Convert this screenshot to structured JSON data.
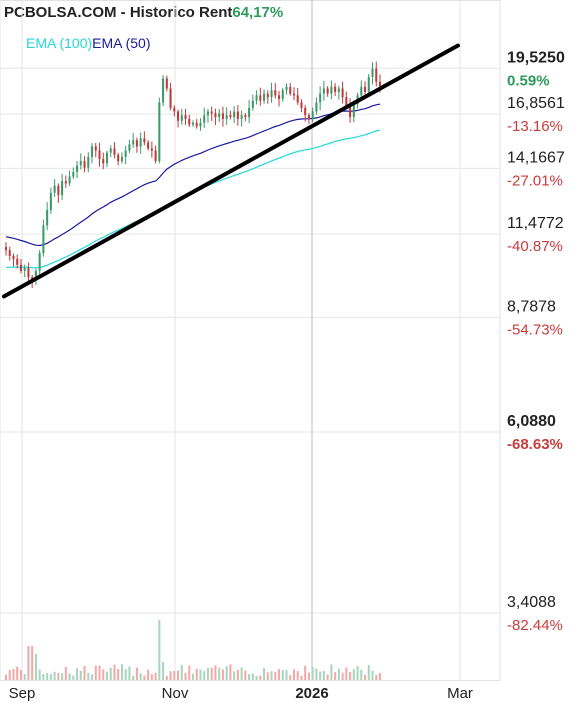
{
  "header": {
    "title": "PCBOLSA.COM - Historico",
    "rent_label": "Rent",
    "rent_value": "64,17%"
  },
  "legend": [
    {
      "name": "EMA (100)",
      "color": "#22d8d8"
    },
    {
      "name": "EMA (50)",
      "color": "#1a1a9c"
    }
  ],
  "chart_data": {
    "type": "candlestick",
    "y_axis": {
      "scale": "log",
      "range": [
        2.75,
        22.5
      ],
      "ticks": [
        {
          "value": 19.525,
          "label": "19,5250",
          "pct": "0.59%",
          "pct_color": "#2e9a5c",
          "bold": true
        },
        {
          "value": 16.8561,
          "label": "16,8561",
          "pct": "-13.16%",
          "pct_color": "#c83c3c",
          "bold": false
        },
        {
          "value": 14.1667,
          "label": "14,1667",
          "pct": "-27.01%",
          "pct_color": "#c83c3c",
          "bold": false
        },
        {
          "value": 11.4772,
          "label": "11,4772",
          "pct": "-40.87%",
          "pct_color": "#c83c3c",
          "bold": false
        },
        {
          "value": 8.7878,
          "label": "8,7878",
          "pct": "-54.73%",
          "pct_color": "#c83c3c",
          "bold": false
        },
        {
          "value": 6.088,
          "label": "6,0880",
          "pct": "-68.63%",
          "pct_color": "#c83c3c",
          "bold": true
        },
        {
          "value": 3.4088,
          "label": "3,4088",
          "pct": "-82.44%",
          "pct_color": "#c83c3c",
          "bold": false
        }
      ]
    },
    "x_axis": {
      "ticks": [
        {
          "label": "Sep",
          "bold": false
        },
        {
          "label": "Nov",
          "bold": false
        },
        {
          "label": "2026",
          "bold": true
        },
        {
          "label": "Mar",
          "bold": false
        }
      ]
    },
    "closes": [
      10.9,
      10.7,
      10.6,
      10.4,
      10.2,
      10.3,
      10.0,
      9.9,
      10.2,
      10.8,
      11.8,
      12.4,
      13.1,
      13.4,
      13.0,
      13.6,
      13.5,
      13.8,
      14.0,
      14.3,
      14.5,
      14.2,
      14.7,
      15.2,
      15.0,
      14.6,
      14.4,
      14.9,
      15.1,
      14.8,
      14.5,
      14.7,
      15.0,
      15.3,
      15.5,
      15.2,
      15.6,
      15.4,
      15.1,
      15.0,
      14.5,
      17.5,
      18.9,
      18.3,
      17.2,
      17.0,
      16.5,
      16.8,
      16.6,
      16.3,
      16.4,
      16.2,
      16.4,
      16.8,
      17.0,
      16.9,
      16.7,
      16.9,
      16.6,
      16.8,
      16.7,
      17.0,
      16.6,
      16.8,
      16.7,
      17.2,
      17.6,
      17.9,
      17.6,
      18.0,
      17.8,
      18.2,
      17.9,
      17.7,
      18.2,
      18.4,
      18.0,
      17.9,
      17.5,
      17.2,
      16.8,
      16.6,
      17.0,
      17.5,
      18.0,
      18.3,
      18.0,
      18.4,
      18.1,
      18.3,
      17.8,
      17.3,
      16.7,
      17.4,
      17.9,
      18.4,
      18.1,
      19.0,
      19.5,
      18.7,
      18.3
    ]
  }
}
